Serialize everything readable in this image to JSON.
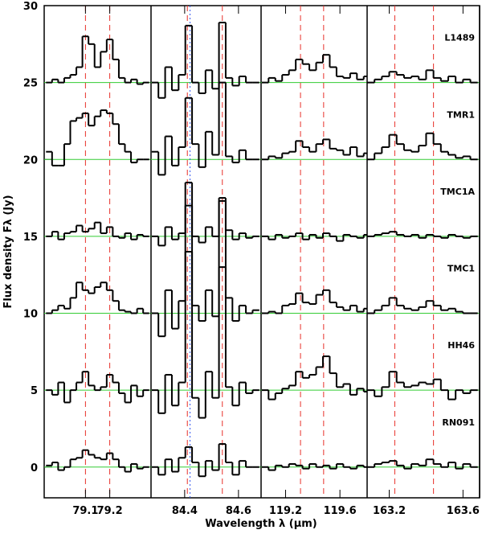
{
  "chart_data": {
    "type": "line",
    "xlabel": "Wavelength λ (μm)",
    "ylabel": "Flux density Fλ (Jy)",
    "ylim": [
      -2,
      30
    ],
    "yticks": [
      0,
      5,
      10,
      15,
      20,
      25,
      30
    ],
    "baseline_color": "#33cc33",
    "line_color": "#000000",
    "sources": [
      {
        "name": "L1489",
        "baseline": 25
      },
      {
        "name": "TMR1",
        "baseline": 20
      },
      {
        "name": "TMC1A",
        "baseline": 15
      },
      {
        "name": "TMC1",
        "baseline": 10
      },
      {
        "name": "HH46",
        "baseline": 5
      },
      {
        "name": "RN091",
        "baseline": 0
      }
    ],
    "panels": [
      {
        "xlim": [
          78.93,
          79.37
        ],
        "xticks": [
          79.1,
          79.2
        ],
        "red_lines": [
          79.1,
          79.2
        ],
        "blue_lines": [],
        "x": [
          78.95,
          78.975,
          79.0,
          79.025,
          79.05,
          79.075,
          79.1,
          79.125,
          79.15,
          79.175,
          79.2,
          79.225,
          79.25,
          79.275,
          79.3,
          79.325,
          79.35
        ],
        "series": [
          {
            "values": [
              25,
              25.2,
              25,
              25.3,
              25.5,
              26,
              28,
              27.5,
              26,
              27,
              27.8,
              26.5,
              25.3,
              25,
              25.2,
              24.9,
              25
            ]
          },
          {
            "values": [
              20.5,
              19.6,
              19.6,
              21,
              22.5,
              22.7,
              23,
              22.2,
              22.8,
              23.2,
              23,
              22.3,
              21,
              20.5,
              19.8,
              20,
              20
            ]
          },
          {
            "values": [
              15,
              15.3,
              14.8,
              15.2,
              15.3,
              15.7,
              15.3,
              15.5,
              15.9,
              15.2,
              15.6,
              15,
              14.9,
              15.2,
              14.8,
              15.1,
              15
            ]
          },
          {
            "values": [
              10,
              10.2,
              10.5,
              10.3,
              11,
              12,
              11.5,
              11.3,
              11.7,
              12,
              11.5,
              10.8,
              10.2,
              10.1,
              10,
              10.3,
              10
            ]
          },
          {
            "values": [
              5,
              4.7,
              5.5,
              4.2,
              5,
              5.5,
              6.2,
              5.3,
              5,
              5.2,
              6,
              5.5,
              4.8,
              4.2,
              5.3,
              4.6,
              5
            ]
          },
          {
            "values": [
              0.1,
              0.3,
              -0.2,
              0,
              0.5,
              0.6,
              1.1,
              0.8,
              0.6,
              0.5,
              0.9,
              0.5,
              0,
              -0.3,
              0.2,
              -0.1,
              0
            ]
          }
        ]
      },
      {
        "xlim": [
          84.275,
          84.684
        ],
        "xticks": [
          84.4,
          84.6
        ],
        "red_lines": [
          84.41,
          84.54
        ],
        "blue_lines": [
          84.42
        ],
        "x": [
          84.29,
          84.315,
          84.34,
          84.365,
          84.39,
          84.415,
          84.44,
          84.465,
          84.49,
          84.515,
          84.54,
          84.565,
          84.59,
          84.615,
          84.64,
          84.665
        ],
        "series": [
          {
            "values": [
              25,
              24,
              26,
              24.5,
              25.5,
              28.7,
              25,
              24.3,
              25.8,
              24.6,
              28.9,
              25.3,
              24.8,
              25.4,
              25,
              25
            ]
          },
          {
            "values": [
              20.5,
              19,
              21.5,
              19.6,
              20.8,
              24,
              21,
              19.5,
              21.8,
              20.3,
              25,
              20.2,
              19.8,
              20.6,
              20,
              20
            ]
          },
          {
            "values": [
              15,
              14.4,
              15.6,
              14.8,
              15.2,
              17,
              15,
              14.6,
              15.6,
              15,
              17.3,
              15.4,
              14.8,
              15.2,
              14.9,
              15
            ]
          },
          {
            "values": [
              10,
              8.5,
              11.5,
              9,
              10.8,
              18.5,
              10.5,
              9.5,
              11.5,
              9.8,
              17.5,
              11,
              9.5,
              10.5,
              10,
              10.2
            ]
          },
          {
            "values": [
              5,
              3.5,
              6,
              4,
              5.5,
              14,
              4.5,
              3.2,
              6.2,
              4.5,
              13,
              5.2,
              4,
              5.5,
              4.8,
              5
            ]
          },
          {
            "values": [
              0,
              -0.5,
              0.5,
              -0.3,
              0.6,
              1.3,
              0.3,
              -0.6,
              0.4,
              -0.2,
              1.5,
              0.3,
              -0.5,
              0.4,
              0,
              0
            ]
          }
        ]
      },
      {
        "xlim": [
          119.02,
          119.8
        ],
        "xticks": [
          119.2,
          119.6
        ],
        "red_lines": [
          119.31,
          119.48
        ],
        "blue_lines": [],
        "x": [
          119.05,
          119.1,
          119.15,
          119.2,
          119.25,
          119.3,
          119.35,
          119.4,
          119.45,
          119.5,
          119.55,
          119.6,
          119.65,
          119.7,
          119.75,
          119.8
        ],
        "series": [
          {
            "values": [
              25,
              25.3,
              25.1,
              25.5,
              25.8,
              26.5,
              26.2,
              25.8,
              26.3,
              26.8,
              26,
              25.4,
              25.3,
              25.6,
              25.2,
              25.4
            ]
          },
          {
            "values": [
              20,
              20.2,
              20.1,
              20.4,
              20.5,
              21.2,
              20.8,
              20.5,
              21,
              21.3,
              20.7,
              20.6,
              20.3,
              20.8,
              20.2,
              20.4
            ]
          },
          {
            "values": [
              15,
              14.8,
              15.1,
              14.9,
              15,
              15.2,
              14.8,
              15.1,
              14.9,
              15.2,
              15,
              14.7,
              15.1,
              15,
              14.9,
              15.1
            ]
          },
          {
            "values": [
              10,
              10.1,
              10,
              10.5,
              10.6,
              11.3,
              10.7,
              10.6,
              11.2,
              11.5,
              10.7,
              10.4,
              10.2,
              10.5,
              10.1,
              10.3
            ]
          },
          {
            "values": [
              5,
              4.4,
              4.8,
              5.1,
              5.3,
              6.2,
              5.8,
              6,
              6.5,
              7.2,
              6.1,
              5.2,
              5.4,
              4.7,
              5.1,
              4.9
            ]
          },
          {
            "values": [
              0,
              -0.2,
              0.1,
              0,
              0.2,
              0.1,
              -0.1,
              0.2,
              0,
              0.1,
              -0.1,
              0.2,
              0,
              -0.1,
              0.1,
              0
            ]
          }
        ]
      },
      {
        "xlim": [
          163.08,
          163.69
        ],
        "xticks": [
          163.2,
          163.6
        ],
        "red_lines": [
          163.23,
          163.44
        ],
        "blue_lines": [],
        "x": [
          163.1,
          163.14,
          163.18,
          163.22,
          163.26,
          163.3,
          163.34,
          163.38,
          163.42,
          163.46,
          163.5,
          163.54,
          163.58,
          163.62,
          163.66
        ],
        "series": [
          {
            "values": [
              25,
              25.2,
              25.4,
              25.7,
              25.5,
              25.3,
              25.4,
              25.2,
              25.8,
              25.3,
              25.1,
              25.4,
              25,
              25.2,
              25
            ]
          },
          {
            "values": [
              20,
              20.4,
              20.8,
              21.6,
              21,
              20.6,
              20.5,
              20.9,
              21.7,
              21,
              20.5,
              20.3,
              20.1,
              20.2,
              20
            ]
          },
          {
            "values": [
              15,
              15.1,
              15.2,
              15.3,
              15.1,
              15,
              15.1,
              14.9,
              15.1,
              15,
              14.9,
              15.1,
              15,
              14.9,
              15
            ]
          },
          {
            "values": [
              10,
              10.2,
              10.5,
              11,
              10.5,
              10.3,
              10.2,
              10.4,
              10.8,
              10.5,
              10.2,
              10.3,
              10.1,
              10,
              10
            ]
          },
          {
            "values": [
              5,
              4.6,
              5.2,
              6.2,
              5.5,
              5.2,
              5.3,
              5.5,
              5.4,
              5.7,
              5,
              4.4,
              5,
              4.8,
              5
            ]
          },
          {
            "values": [
              0,
              0.2,
              0.3,
              0.4,
              0.1,
              -0.1,
              0.2,
              0.1,
              0.5,
              0.2,
              0,
              0.3,
              -0.1,
              0.2,
              0
            ]
          }
        ]
      }
    ]
  }
}
